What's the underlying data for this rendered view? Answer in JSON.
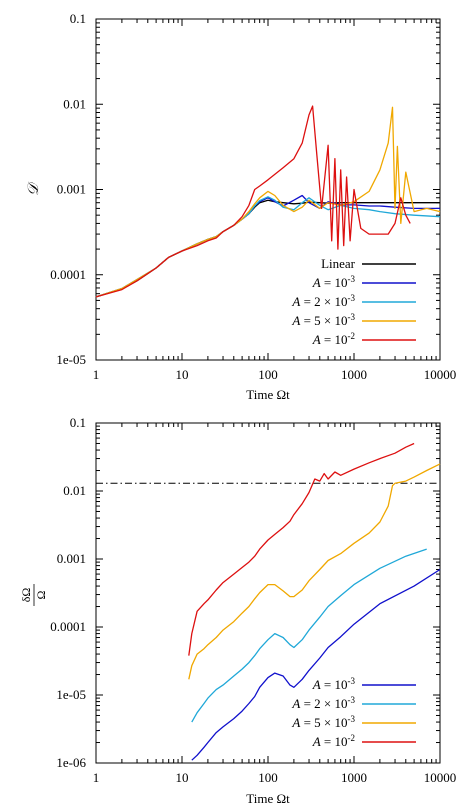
{
  "chart_data": [
    {
      "type": "line",
      "xlabel": "Time Ωt",
      "ylabel": "𝒟",
      "xscale": "log",
      "yscale": "log",
      "xlim": [
        1,
        10000
      ],
      "ylim": [
        1e-05,
        0.1
      ],
      "xticks": [
        "1",
        "10",
        "100",
        "1000",
        "10000"
      ],
      "yticks": [
        "1e-05",
        "0.0001",
        "0.001",
        "0.01",
        "0.1"
      ],
      "legend": "bottom-right",
      "series": [
        {
          "name": "Linear",
          "color": "#000000",
          "x": [
            1,
            2,
            3,
            5,
            7,
            10,
            15,
            20,
            25,
            30,
            40,
            50,
            60,
            70,
            80,
            100,
            120,
            150,
            200,
            250,
            300,
            400,
            500,
            700,
            1000,
            1500,
            2000,
            3000,
            5000,
            10000
          ],
          "y": [
            5.5e-05,
            6.8e-05,
            8.5e-05,
            0.00012,
            0.00016,
            0.00019,
            0.00023,
            0.00026,
            0.00028,
            0.00032,
            0.00038,
            0.00045,
            0.00052,
            0.00062,
            0.0007,
            0.00075,
            0.00072,
            0.0007,
            0.00068,
            0.00069,
            0.00071,
            0.0007,
            0.00069,
            0.0007,
            0.0007,
            0.0007,
            0.0007,
            0.0007,
            0.0007,
            0.0007
          ]
        },
        {
          "name": "A = 10^-3",
          "color": "#1010cc",
          "x": [
            1,
            2,
            3,
            5,
            7,
            10,
            15,
            20,
            25,
            30,
            40,
            50,
            60,
            70,
            80,
            100,
            120,
            150,
            200,
            250,
            300,
            400,
            500,
            700,
            1000,
            1500,
            2000,
            3000,
            5000,
            10000
          ],
          "y": [
            5.5e-05,
            6.9e-05,
            8.8e-05,
            0.00012,
            0.00016,
            0.00019,
            0.00023,
            0.00026,
            0.00028,
            0.00032,
            0.00038,
            0.00045,
            0.00052,
            0.00064,
            0.00072,
            0.0008,
            0.00072,
            0.00064,
            0.00075,
            0.00085,
            0.0007,
            0.0006,
            0.00072,
            0.00066,
            0.00066,
            0.00064,
            0.00064,
            0.00062,
            0.0006,
            0.0006
          ]
        },
        {
          "name": "A = 2 × 10^-3",
          "color": "#20a8d8",
          "x": [
            1,
            2,
            3,
            5,
            7,
            10,
            15,
            20,
            25,
            30,
            40,
            50,
            60,
            70,
            80,
            100,
            120,
            150,
            200,
            250,
            300,
            400,
            500,
            700,
            1000,
            1500,
            2000,
            3000,
            5000,
            10000
          ],
          "y": [
            5.5e-05,
            6.9e-05,
            8.8e-05,
            0.00012,
            0.00016,
            0.00019,
            0.00023,
            0.00026,
            0.00028,
            0.00032,
            0.00038,
            0.00045,
            0.00052,
            0.00064,
            0.00074,
            0.00082,
            0.00075,
            0.00062,
            0.00058,
            0.0007,
            0.0008,
            0.00065,
            0.00058,
            0.00065,
            0.0006,
            0.00058,
            0.00055,
            0.00052,
            0.0005,
            0.00048
          ]
        },
        {
          "name": "A = 5 × 10^-3",
          "color": "#f0a800",
          "x": [
            1,
            2,
            3,
            5,
            7,
            10,
            15,
            20,
            25,
            30,
            40,
            50,
            60,
            70,
            80,
            100,
            120,
            150,
            200,
            250,
            300,
            400,
            500,
            700,
            1000,
            1500,
            2000,
            2500,
            2800,
            3000,
            3200,
            3500,
            4000,
            5000,
            7000,
            10000
          ],
          "y": [
            5.5e-05,
            6.9e-05,
            8.8e-05,
            0.00012,
            0.00016,
            0.00019,
            0.00023,
            0.00026,
            0.00028,
            0.00032,
            0.00038,
            0.00045,
            0.00055,
            0.00068,
            0.0008,
            0.00095,
            0.00085,
            0.00065,
            0.00055,
            0.00062,
            0.00075,
            0.0006,
            0.0007,
            0.00065,
            0.00072,
            0.00095,
            0.0017,
            0.0035,
            0.0092,
            0.0006,
            0.0032,
            0.0004,
            0.0016,
            0.00055,
            0.0006,
            0.00055
          ]
        },
        {
          "name": "A = 10^-2",
          "color": "#dd1010",
          "x": [
            1,
            2,
            3,
            5,
            7,
            10,
            15,
            20,
            25,
            30,
            40,
            50,
            60,
            70,
            80,
            100,
            150,
            200,
            250,
            300,
            330,
            370,
            420,
            500,
            550,
            600,
            650,
            700,
            760,
            820,
            900,
            1000,
            1200,
            1500,
            2000,
            2500,
            3000,
            3500,
            4000,
            4500
          ],
          "y": [
            5.5e-05,
            6.7e-05,
            8.5e-05,
            0.00012,
            0.00016,
            0.00019,
            0.00022,
            0.00025,
            0.00027,
            0.00032,
            0.00038,
            0.00048,
            0.00065,
            0.001,
            0.0011,
            0.0013,
            0.0018,
            0.0023,
            0.0035,
            0.0075,
            0.0095,
            0.0025,
            0.0006,
            0.0033,
            0.00025,
            0.0023,
            0.0002,
            0.0017,
            0.00022,
            0.0014,
            0.00025,
            0.001,
            0.00035,
            0.0003,
            0.0003,
            0.0003,
            0.0004,
            0.0008,
            0.0005,
            0.0004
          ]
        }
      ]
    },
    {
      "type": "line",
      "xlabel": "Time Ωt",
      "ylabel": "δΩ/Ω",
      "ylabel_num": "δΩ",
      "ylabel_den": "Ω",
      "xscale": "log",
      "yscale": "log",
      "xlim": [
        1,
        10000
      ],
      "ylim": [
        1e-06,
        0.1
      ],
      "xticks": [
        "1",
        "10",
        "100",
        "1000",
        "10000"
      ],
      "yticks": [
        "1e-06",
        "1e-05",
        "0.0001",
        "0.001",
        "0.01",
        "0.1"
      ],
      "legend": "bottom-right",
      "reference_line": {
        "y": 0.013,
        "style": "dash-dot",
        "color": "#000000"
      },
      "series": [
        {
          "name": "A = 10^-3",
          "color": "#1010cc",
          "x": [
            13,
            15,
            18,
            20,
            25,
            30,
            40,
            50,
            60,
            70,
            80,
            100,
            120,
            150,
            180,
            200,
            250,
            300,
            400,
            500,
            700,
            1000,
            2000,
            5000,
            10000
          ],
          "y": [
            1.1e-06,
            1.3e-06,
            1.7e-06,
            2e-06,
            2.8e-06,
            3.4e-06,
            4.5e-06,
            5.8e-06,
            7.5e-06,
            9.5e-06,
            1.3e-05,
            1.8e-05,
            2.1e-05,
            1.9e-05,
            1.4e-05,
            1.3e-05,
            1.7e-05,
            2.3e-05,
            3.5e-05,
            5e-05,
            7.2e-05,
            0.00011,
            0.00022,
            0.0004,
            0.0007
          ]
        },
        {
          "name": "A = 2 × 10^-3",
          "color": "#20a8d8",
          "x": [
            13,
            15,
            18,
            20,
            25,
            30,
            40,
            50,
            60,
            70,
            80,
            100,
            120,
            150,
            180,
            200,
            250,
            300,
            400,
            500,
            700,
            1000,
            2000,
            4000,
            7000
          ],
          "y": [
            4e-06,
            5.5e-06,
            7.5e-06,
            9e-06,
            1.2e-05,
            1.4e-05,
            1.9e-05,
            2.4e-05,
            3e-05,
            3.8e-05,
            4.8e-05,
            6.5e-05,
            8e-05,
            7e-05,
            5.5e-05,
            5e-05,
            6.5e-05,
            9e-05,
            0.00014,
            0.0002,
            0.00029,
            0.00042,
            0.00073,
            0.0011,
            0.0014
          ]
        },
        {
          "name": "A = 5 × 10^-3",
          "color": "#f0a800",
          "x": [
            12,
            13,
            15,
            18,
            20,
            25,
            30,
            40,
            50,
            60,
            70,
            80,
            100,
            120,
            150,
            180,
            200,
            250,
            300,
            400,
            500,
            700,
            1000,
            1500,
            2000,
            2500,
            2800,
            3000,
            4000,
            5000,
            7000,
            10000
          ],
          "y": [
            1.7e-05,
            2.7e-05,
            4e-05,
            4.8e-05,
            5.5e-05,
            7e-05,
            9e-05,
            0.00012,
            0.00016,
            0.0002,
            0.00026,
            0.00032,
            0.00042,
            0.00042,
            0.00034,
            0.00028,
            0.00028,
            0.00035,
            0.00048,
            0.0007,
            0.00095,
            0.0012,
            0.0017,
            0.0024,
            0.0035,
            0.006,
            0.012,
            0.013,
            0.014,
            0.016,
            0.02,
            0.025
          ]
        },
        {
          "name": "A = 10^-2",
          "color": "#dd1010",
          "x": [
            12,
            13,
            15,
            18,
            20,
            25,
            30,
            40,
            50,
            60,
            70,
            80,
            100,
            120,
            150,
            180,
            200,
            250,
            300,
            350,
            400,
            450,
            500,
            600,
            700,
            1000,
            1500,
            2000,
            3000,
            4000,
            5000
          ],
          "y": [
            3.8e-05,
            8e-05,
            0.00017,
            0.00022,
            0.00025,
            0.00035,
            0.00045,
            0.0006,
            0.00075,
            0.0009,
            0.0011,
            0.0014,
            0.0019,
            0.0023,
            0.0029,
            0.0036,
            0.0045,
            0.0065,
            0.0095,
            0.015,
            0.014,
            0.018,
            0.015,
            0.019,
            0.017,
            0.021,
            0.026,
            0.03,
            0.036,
            0.044,
            0.05
          ]
        }
      ]
    }
  ]
}
